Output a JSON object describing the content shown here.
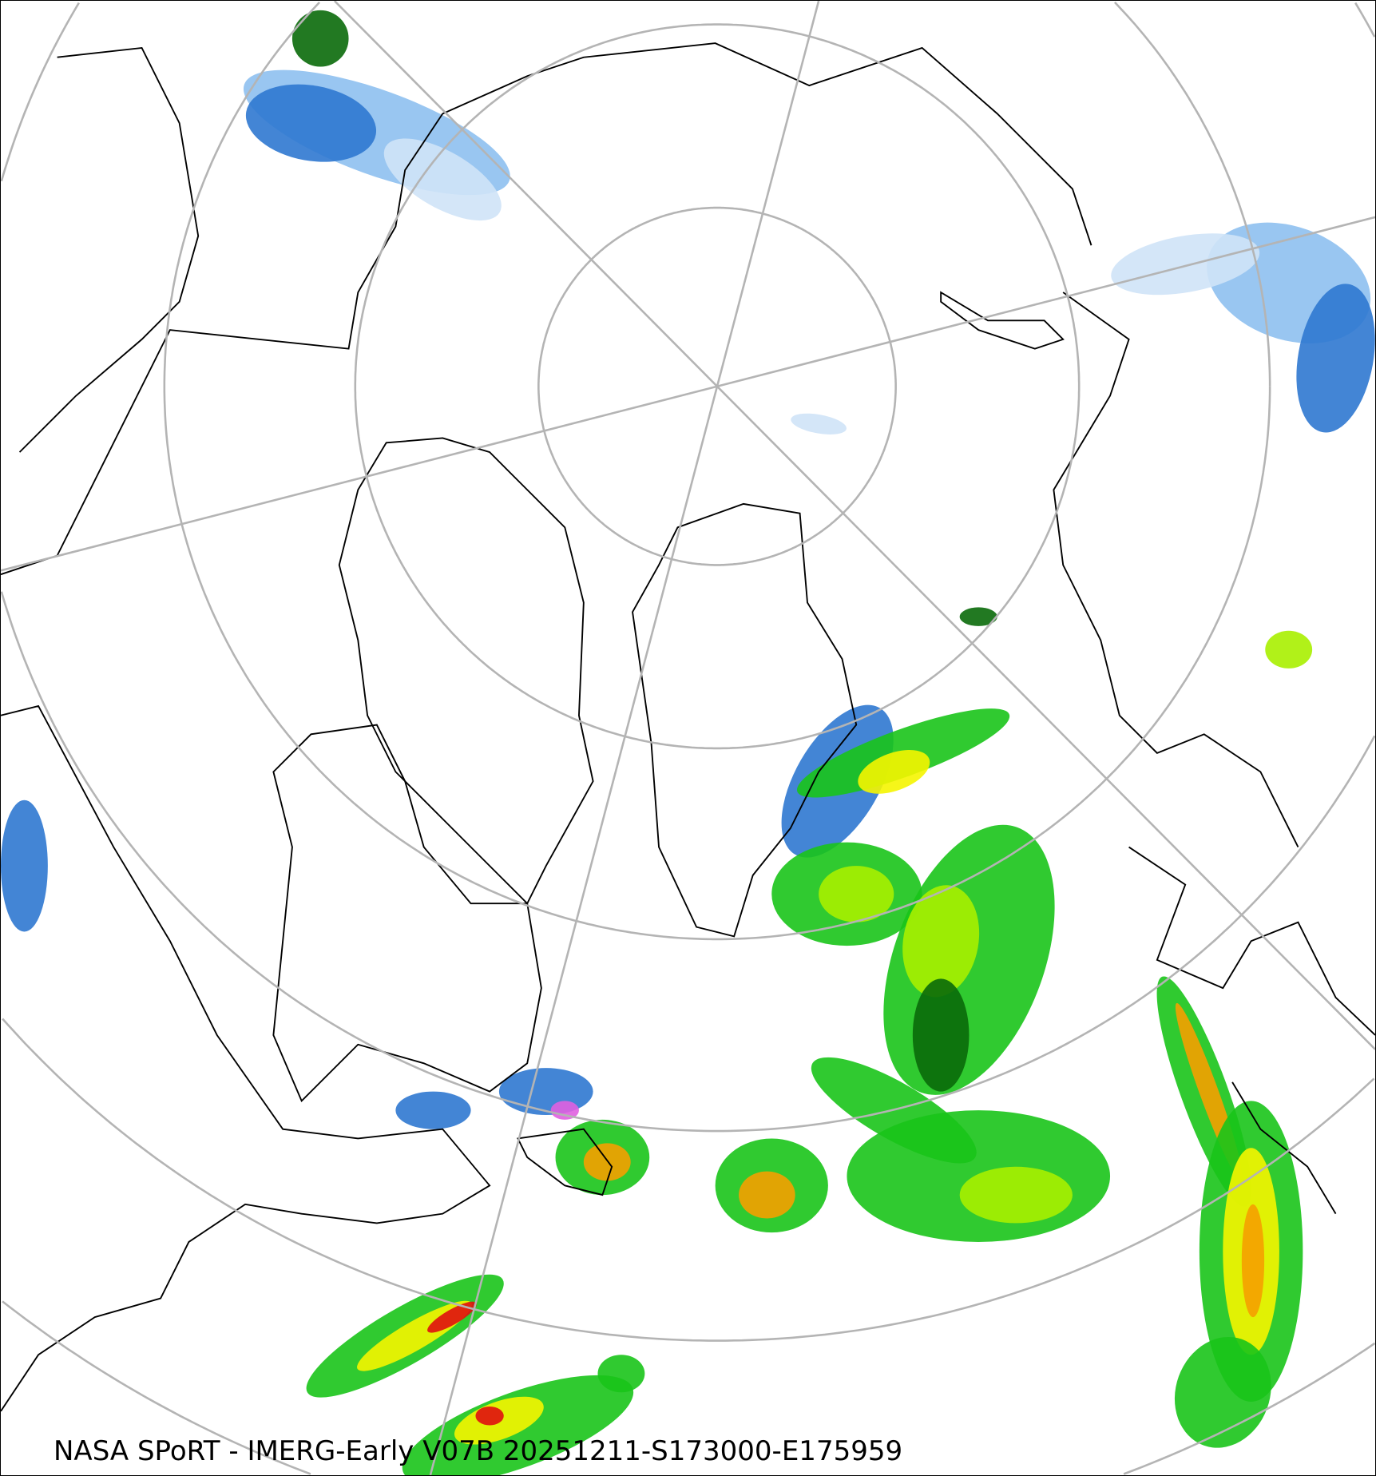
{
  "caption": "NASA SPoRT - IMERG-Early V07B 20251211-S173000-E175959",
  "map": {
    "projection": "north-polar-stereographic",
    "graticule_color": "#b4b4b4",
    "coastline_color": "#000000",
    "precip_colors": {
      "very_light_snow": "#cfe3f7",
      "light_snow": "#8ec0f0",
      "snow": "#2f78d0",
      "light_rain": "#0a6a0a",
      "rain_green": "#19c419",
      "rain_lightgreen": "#a8f000",
      "rain_yellow": "#f5f500",
      "rain_orange": "#f5a000",
      "rain_red": "#e01010",
      "rain_darkred": "#900000",
      "mixed_magenta": "#e060e0"
    }
  }
}
